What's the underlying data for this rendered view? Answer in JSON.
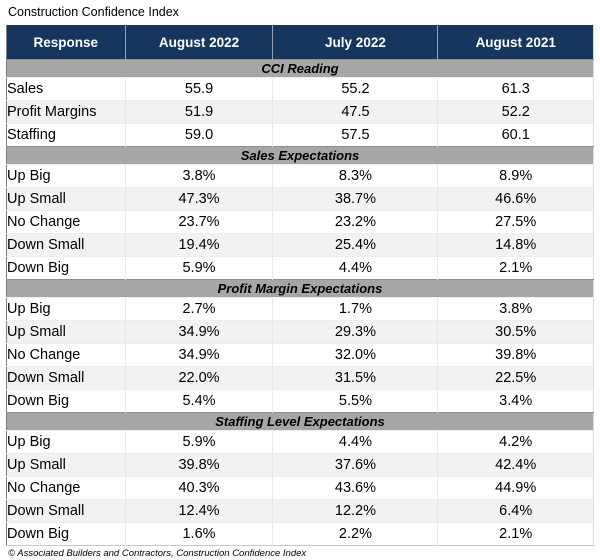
{
  "chart_data": {
    "type": "table",
    "title": "Construction Confidence Index",
    "source_note": "© Associated Builders and Contractors, Construction Confidence Index",
    "columns": [
      "Response",
      "August 2022",
      "July 2022",
      "August 2021"
    ],
    "sections": [
      {
        "header": "CCI Reading",
        "rows": [
          [
            "Sales",
            "55.9",
            "55.2",
            "61.3"
          ],
          [
            "Profit Margins",
            "51.9",
            "47.5",
            "52.2"
          ],
          [
            "Staffing",
            "59.0",
            "57.5",
            "60.1"
          ]
        ]
      },
      {
        "header": "Sales Expectations",
        "rows": [
          [
            "Up Big",
            "3.8%",
            "8.3%",
            "8.9%"
          ],
          [
            "Up Small",
            "47.3%",
            "38.7%",
            "46.6%"
          ],
          [
            "No Change",
            "23.7%",
            "23.2%",
            "27.5%"
          ],
          [
            "Down Small",
            "19.4%",
            "25.4%",
            "14.8%"
          ],
          [
            "Down Big",
            "5.9%",
            "4.4%",
            "2.1%"
          ]
        ]
      },
      {
        "header": "Profit Margin Expectations",
        "rows": [
          [
            "Up Big",
            "2.7%",
            "1.7%",
            "3.8%"
          ],
          [
            "Up Small",
            "34.9%",
            "29.3%",
            "30.5%"
          ],
          [
            "No Change",
            "34.9%",
            "32.0%",
            "39.8%"
          ],
          [
            "Down Small",
            "22.0%",
            "31.5%",
            "22.5%"
          ],
          [
            "Down Big",
            "5.4%",
            "5.5%",
            "3.4%"
          ]
        ]
      },
      {
        "header": "Staffing Level Expectations",
        "rows": [
          [
            "Up Big",
            "5.9%",
            "4.4%",
            "4.2%"
          ],
          [
            "Up Small",
            "39.8%",
            "37.6%",
            "42.4%"
          ],
          [
            "No Change",
            "40.3%",
            "43.6%",
            "44.9%"
          ],
          [
            "Down Small",
            "12.4%",
            "12.2%",
            "6.4%"
          ],
          [
            "Down Big",
            "1.6%",
            "2.2%",
            "2.1%"
          ]
        ]
      }
    ]
  },
  "colors": {
    "header_bg": "#17365D",
    "header_text": "#FFFFFF",
    "section_bg": "#A6A6A6",
    "row_stripe": "#F2F2F2",
    "text": "#000000"
  }
}
